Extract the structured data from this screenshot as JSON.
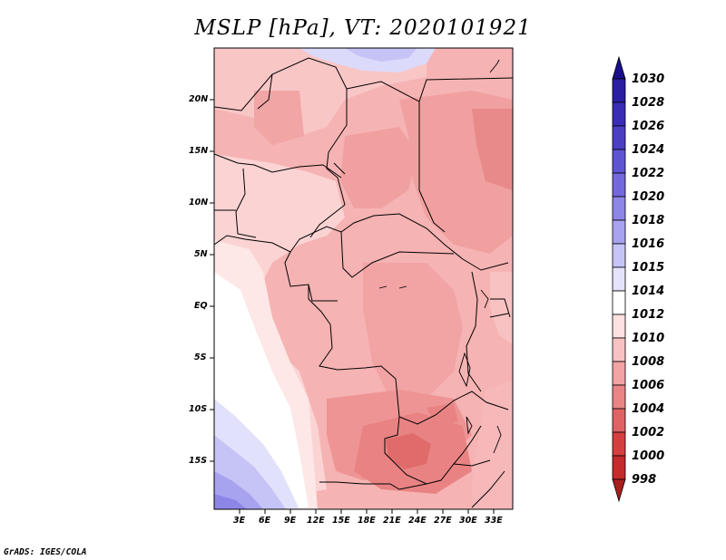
{
  "title": "MSLP [hPa], VT: 2020101921",
  "credit": "GrADS: IGES/COLA",
  "lat_ticks": [
    "20N",
    "15N",
    "10N",
    "5N",
    "EQ",
    "5S",
    "10S",
    "15S"
  ],
  "lon_ticks": [
    "3E",
    "6E",
    "9E",
    "12E",
    "15E",
    "18E",
    "21E",
    "24E",
    "27E",
    "30E",
    "33E"
  ],
  "colorbar": {
    "labels": [
      "1030",
      "1028",
      "1026",
      "1024",
      "1022",
      "1020",
      "1018",
      "1016",
      "1015",
      "1014",
      "1012",
      "1010",
      "1008",
      "1006",
      "1004",
      "1002",
      "1000",
      "998"
    ],
    "colors": [
      "#1a0e8a",
      "#2a1ea3",
      "#3a2db5",
      "#4b3fc4",
      "#5e55d2",
      "#7468dd",
      "#8d86e7",
      "#a8a3ef",
      "#c6c4f6",
      "#e4e3fb",
      "#ffffff",
      "#fde0e0",
      "#f8c2c2",
      "#f2a3a3",
      "#e98585",
      "#df6363",
      "#d43f3f",
      "#c42b2b",
      "#a81e1e"
    ]
  },
  "map": {
    "region": "Central Africa",
    "lon_range": [
      0,
      35
    ],
    "lat_range": [
      -20,
      24.5
    ],
    "field": "MSLP"
  }
}
